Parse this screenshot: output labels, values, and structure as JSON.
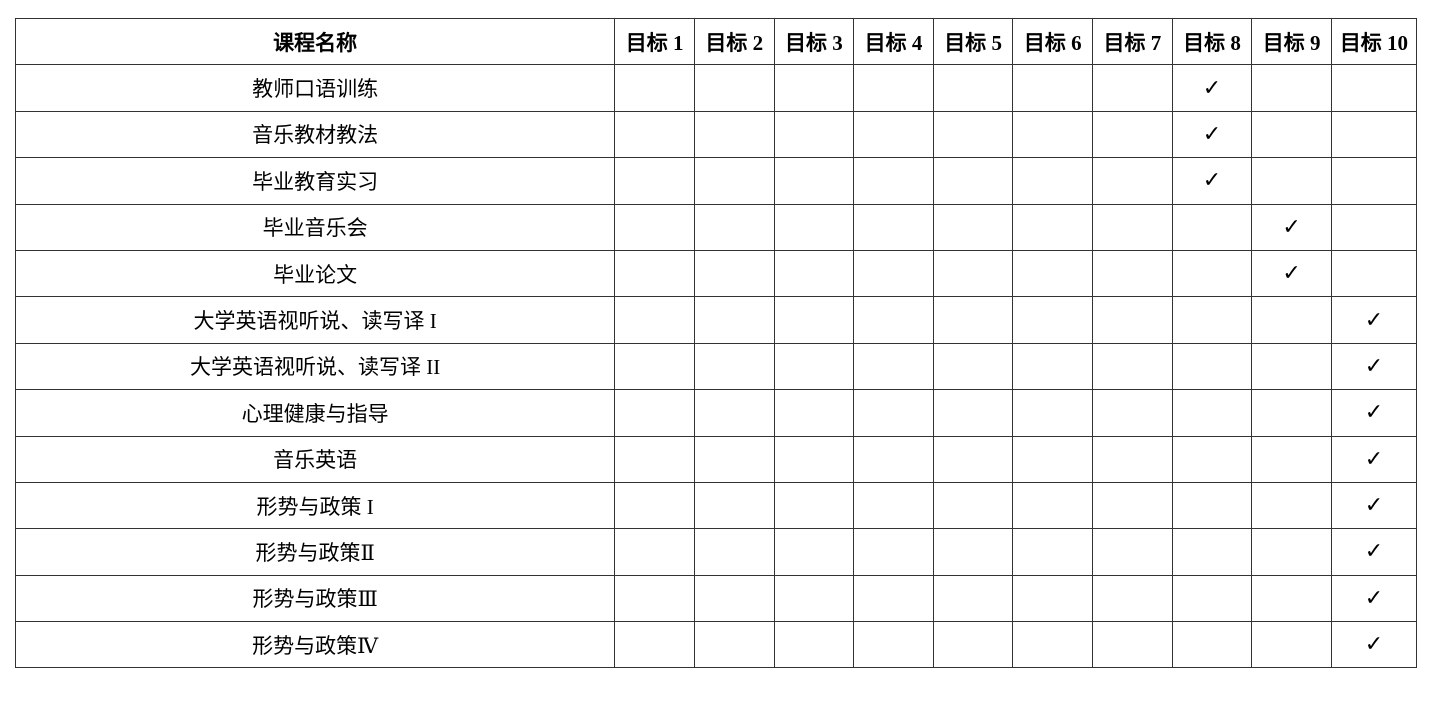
{
  "table": {
    "headers": [
      "课程名称",
      "目标 1",
      "目标 2",
      "目标 3",
      "目标 4",
      "目标 5",
      "目标 6",
      "目标 7",
      "目标 8",
      "目标 9",
      "目标 10"
    ],
    "check_mark": "✓",
    "rows": [
      {
        "course": "教师口语训练",
        "goal": 8
      },
      {
        "course": "音乐教材教法",
        "goal": 8
      },
      {
        "course": "毕业教育实习",
        "goal": 8
      },
      {
        "course": "毕业音乐会",
        "goal": 9
      },
      {
        "course": "毕业论文",
        "goal": 9
      },
      {
        "course": "大学英语视听说、读写译 I",
        "goal": 10
      },
      {
        "course": "大学英语视听说、读写译 II",
        "goal": 10
      },
      {
        "course": "心理健康与指导",
        "goal": 10
      },
      {
        "course": "音乐英语",
        "goal": 10
      },
      {
        "course": "形势与政策 I",
        "goal": 10
      },
      {
        "course": "形势与政策Ⅱ",
        "goal": 10
      },
      {
        "course": "形势与政策Ⅲ",
        "goal": 10
      },
      {
        "course": "形势与政策Ⅳ",
        "goal": 10
      }
    ]
  }
}
